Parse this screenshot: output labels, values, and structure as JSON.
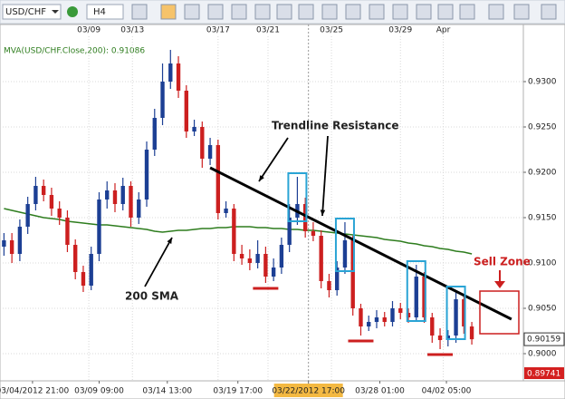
{
  "toolbar": {
    "symbol": "USD/CHF",
    "timeframe": "H4"
  },
  "chart_data": {
    "type": "candlestick",
    "indicator_label": "MVA(USD/CHF.Close,200): 0.91086",
    "open": [
      0.9118,
      0.9125,
      0.911,
      0.914,
      0.9165,
      0.9185,
      0.9175,
      0.916,
      0.915,
      0.912,
      0.909,
      0.9075,
      0.911,
      0.917,
      0.918,
      0.9165,
      0.9185,
      0.915,
      0.917,
      0.9225,
      0.926,
      0.93,
      0.932,
      0.929,
      0.9245,
      0.925,
      0.9215,
      0.923,
      0.9155,
      0.916,
      0.911,
      0.9105,
      0.91,
      0.911,
      0.9085,
      0.9095,
      0.912,
      0.915,
      0.9165,
      0.9135,
      0.913,
      0.908,
      0.907,
      0.9095,
      0.9125,
      0.905,
      0.903,
      0.9035,
      0.904,
      0.9035,
      0.905,
      0.9045,
      0.904,
      0.9085,
      0.904,
      0.902,
      0.9015,
      0.902,
      0.906,
      0.903
    ],
    "high": [
      0.9133,
      0.9133,
      0.9148,
      0.9173,
      0.9195,
      0.9192,
      0.9183,
      0.9168,
      0.9158,
      0.9126,
      0.9097,
      0.9118,
      0.9178,
      0.919,
      0.9188,
      0.9194,
      0.919,
      0.9178,
      0.9234,
      0.927,
      0.932,
      0.9335,
      0.9328,
      0.9296,
      0.9258,
      0.9256,
      0.9238,
      0.9236,
      0.9168,
      0.9165,
      0.912,
      0.9115,
      0.9125,
      0.9118,
      0.9105,
      0.9128,
      0.9165,
      0.9195,
      0.9172,
      0.9145,
      0.9136,
      0.9088,
      0.9102,
      0.9145,
      0.913,
      0.9055,
      0.9042,
      0.9048,
      0.9046,
      0.9058,
      0.9056,
      0.905,
      0.9098,
      0.909,
      0.9045,
      0.9028,
      0.9026,
      0.907,
      0.9064,
      0.9035
    ],
    "low": [
      0.9108,
      0.91,
      0.9102,
      0.9132,
      0.9158,
      0.9168,
      0.9152,
      0.9142,
      0.9112,
      0.9082,
      0.9068,
      0.907,
      0.9102,
      0.916,
      0.9156,
      0.9158,
      0.914,
      0.9143,
      0.9162,
      0.9218,
      0.9252,
      0.9292,
      0.9282,
      0.9238,
      0.924,
      0.9205,
      0.9208,
      0.9148,
      0.915,
      0.9102,
      0.9098,
      0.9092,
      0.9094,
      0.9078,
      0.908,
      0.9088,
      0.9112,
      0.9142,
      0.9128,
      0.9124,
      0.9072,
      0.9062,
      0.9064,
      0.9088,
      0.9042,
      0.902,
      0.9025,
      0.9028,
      0.903,
      0.903,
      0.9038,
      0.9034,
      0.9035,
      0.9034,
      0.9012,
      0.9005,
      0.9008,
      0.9012,
      0.9022,
      0.901
    ],
    "close": [
      0.9125,
      0.911,
      0.914,
      0.9165,
      0.9185,
      0.9175,
      0.916,
      0.915,
      0.912,
      0.909,
      0.9075,
      0.911,
      0.917,
      0.918,
      0.9165,
      0.9185,
      0.915,
      0.917,
      0.9225,
      0.926,
      0.93,
      0.932,
      0.929,
      0.9245,
      0.925,
      0.9215,
      0.923,
      0.9155,
      0.916,
      0.911,
      0.9105,
      0.91,
      0.911,
      0.9085,
      0.9095,
      0.912,
      0.915,
      0.9165,
      0.9135,
      0.913,
      0.908,
      0.907,
      0.9095,
      0.9125,
      0.905,
      0.903,
      0.9035,
      0.904,
      0.9035,
      0.905,
      0.9045,
      0.904,
      0.9085,
      0.904,
      0.902,
      0.9015,
      0.902,
      0.906,
      0.903,
      0.90159
    ],
    "up_color": "#1c3f94",
    "down_color": "#cc1f1f",
    "sma": {
      "name": "MVA(USD/CHF.Close,200): 0.91086",
      "color": "#2e7d1e",
      "values": [
        0.916,
        0.9158,
        0.9156,
        0.9154,
        0.9152,
        0.915,
        0.9149,
        0.9148,
        0.9146,
        0.9145,
        0.9144,
        0.9143,
        0.9142,
        0.9142,
        0.9141,
        0.914,
        0.9139,
        0.9138,
        0.9137,
        0.9135,
        0.9134,
        0.9135,
        0.9136,
        0.9136,
        0.9137,
        0.9138,
        0.9138,
        0.9139,
        0.9139,
        0.914,
        0.914,
        0.914,
        0.9139,
        0.9139,
        0.9138,
        0.9138,
        0.9137,
        0.9137,
        0.9136,
        0.9136,
        0.9135,
        0.9134,
        0.9133,
        0.9132,
        0.9131,
        0.913,
        0.9129,
        0.9128,
        0.9126,
        0.9125,
        0.9124,
        0.9122,
        0.9121,
        0.9119,
        0.9118,
        0.9116,
        0.9115,
        0.9113,
        0.9112,
        0.911
      ]
    },
    "trendline": {
      "x": [
        26,
        64
      ],
      "y": [
        0.9205,
        0.9038
      ],
      "color": "#000000"
    },
    "xlim": [
      -0.5,
      65.5
    ],
    "ylim": [
      0.897,
      0.9363
    ],
    "yticks": [
      {
        "value": 0.93,
        "label": "0.9300"
      },
      {
        "value": 0.925,
        "label": "0.9250"
      },
      {
        "value": 0.92,
        "label": "0.9200"
      },
      {
        "value": 0.915,
        "label": "0.9150"
      },
      {
        "value": 0.91,
        "label": "0.9100"
      },
      {
        "value": 0.905,
        "label": "0.9050"
      },
      {
        "value": 0.9,
        "label": "0.9000"
      }
    ],
    "x2ticks": [
      {
        "value": 10.7,
        "label": "03/09"
      },
      {
        "value": 16.2,
        "label": "03/13"
      },
      {
        "value": 27,
        "label": "03/17"
      },
      {
        "value": 33.3,
        "label": "03/21"
      },
      {
        "value": 41.3,
        "label": "03/25"
      },
      {
        "value": 50,
        "label": "03/29"
      },
      {
        "value": 55.4,
        "label": "Apr"
      }
    ],
    "xticks": [
      {
        "value": 3.6,
        "label": "03/04/2012 21:00"
      },
      {
        "value": 12,
        "label": "03/09 09:00"
      },
      {
        "value": 20.6,
        "label": "03/14 13:00"
      },
      {
        "value": 29.5,
        "label": "03/19 17:00"
      },
      {
        "value": 38.4,
        "label": "03/22/2012 17:00"
      },
      {
        "value": 47.4,
        "label": "03/28 01:00"
      },
      {
        "value": 55.8,
        "label": "04/02 05:00"
      }
    ],
    "min_price_label": "0.89741",
    "grid": true,
    "annotations": {
      "trendline": "Trendline Resistance",
      "sma": "200 SMA",
      "sell_zone": "Sell Zone"
    }
  }
}
